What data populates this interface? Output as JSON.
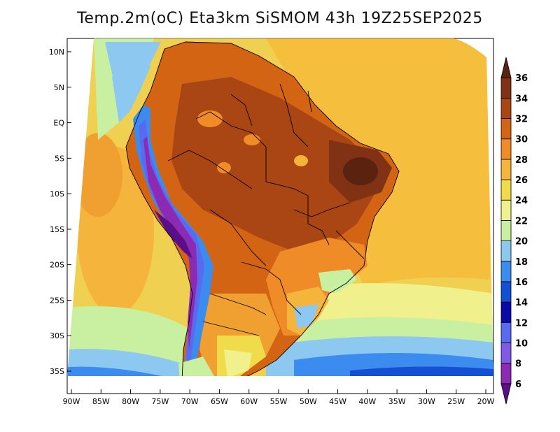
{
  "title": "Temp.2m(oC) Eta3km SiSMOM 43h 19Z25SEP2025",
  "map": {
    "variable": "2 m temperature",
    "units": "oC",
    "lon_range": [
      -91,
      -20
    ],
    "lat_range": [
      -38,
      11
    ],
    "lat_ticks": [
      {
        "label": "10N",
        "lat": 10
      },
      {
        "label": "5N",
        "lat": 5
      },
      {
        "label": "EQ",
        "lat": 0
      },
      {
        "label": "5S",
        "lat": -5
      },
      {
        "label": "10S",
        "lat": -10
      },
      {
        "label": "15S",
        "lat": -15
      },
      {
        "label": "20S",
        "lat": -20
      },
      {
        "label": "25S",
        "lat": -25
      },
      {
        "label": "30S",
        "lat": -30
      },
      {
        "label": "35S",
        "lat": -35
      }
    ],
    "lon_ticks": [
      {
        "label": "90W",
        "lon": -90
      },
      {
        "label": "85W",
        "lon": -85
      },
      {
        "label": "80W",
        "lon": -80
      },
      {
        "label": "75W",
        "lon": -75
      },
      {
        "label": "70W",
        "lon": -70
      },
      {
        "label": "65W",
        "lon": -65
      },
      {
        "label": "60W",
        "lon": -60
      },
      {
        "label": "55W",
        "lon": -55
      },
      {
        "label": "50W",
        "lon": -50
      },
      {
        "label": "45W",
        "lon": -45
      },
      {
        "label": "40W",
        "lon": -40
      },
      {
        "label": "35W",
        "lon": -35
      },
      {
        "label": "30W",
        "lon": -30
      },
      {
        "label": "25W",
        "lon": -25
      },
      {
        "label": "20W",
        "lon": -20
      }
    ]
  },
  "colorbar": {
    "labels": [
      "6",
      "8",
      "10",
      "12",
      "14",
      "16",
      "18",
      "20",
      "22",
      "24",
      "26",
      "28",
      "30",
      "32",
      "34",
      "36"
    ],
    "colors": [
      "#5a0f88",
      "#8c2ab4",
      "#7f5ae6",
      "#5a6af0",
      "#0a0aa8",
      "#1450d2",
      "#3c8cf0",
      "#8cc8f0",
      "#c8f0a0",
      "#f0f08c",
      "#f0dc4b",
      "#f5b43c",
      "#f08c28",
      "#d26414",
      "#aa4614",
      "#823214",
      "#5a230f"
    ]
  }
}
